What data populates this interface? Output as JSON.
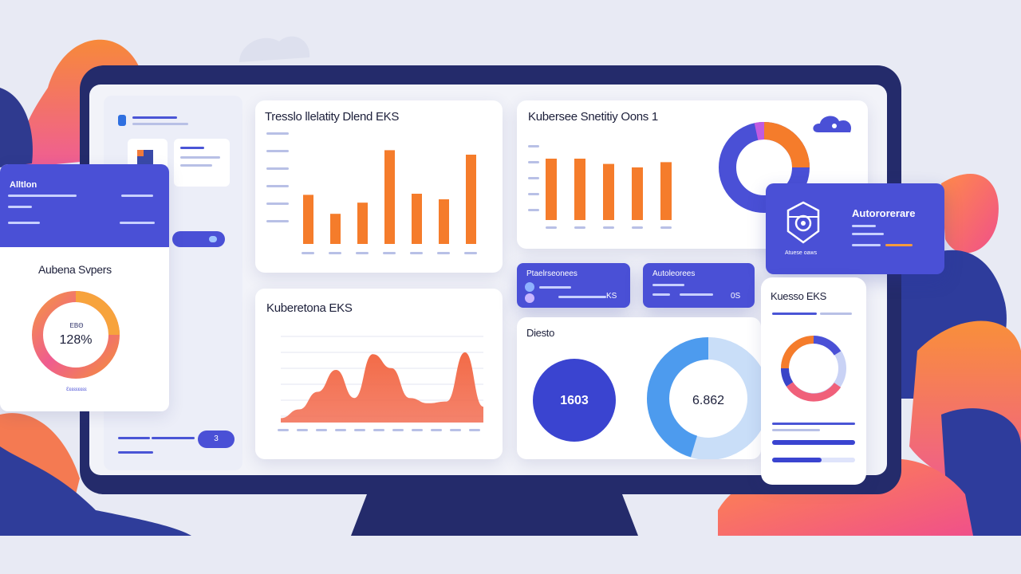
{
  "colors": {
    "navy": "#242b6b",
    "accent_blue": "#4a50d6",
    "orange": "#f57c2b",
    "pink": "#f05a8c",
    "light_blue": "#4d9bee",
    "background": "#e8eaf4"
  },
  "bar_panel_1": {
    "title": "Tresslo llelatity Dlend EKS",
    "chart_data": {
      "type": "bar",
      "values": [
        44,
        27,
        37,
        84,
        45,
        40,
        80
      ],
      "ylim": [
        0,
        100
      ]
    }
  },
  "bar_panel_2": {
    "title": "Kubersee Snetitiy Oons 1",
    "chart_data": {
      "type": "bar",
      "values": [
        70,
        70,
        64,
        60,
        66
      ],
      "ylim": [
        0,
        100
      ]
    }
  },
  "area_panel": {
    "title": "Kuberetona EKS",
    "chart_data": {
      "type": "area",
      "values": [
        5,
        15,
        35,
        60,
        28,
        78,
        62,
        28,
        22,
        24,
        80,
        18
      ],
      "ylim": [
        0,
        100
      ]
    }
  },
  "left_card": {
    "header_title": "Alltlon",
    "title": "Aubena Svpers",
    "donut_small_label": "ΕΒΘ",
    "donut_value": "128%",
    "donut_caption": "Ɛɛɛɛɛɛɛɛɛ"
  },
  "circles_panel": {
    "title": "Diesto",
    "circle_value": "1603",
    "donut_value": "6.862"
  },
  "autoreare_card": {
    "title": "Autororerare",
    "caption": "Atuese oaws"
  },
  "mobile_card": {
    "title": "Kuesso EKS"
  },
  "mini_card_1": {
    "title": "Ptaelrseonees",
    "value": "KS"
  },
  "mini_card_2": {
    "title": "Autoleorees",
    "value": "0S"
  },
  "sidebar": {
    "badge": "3"
  },
  "icons": [
    "cloud-icon",
    "robot-icon",
    "toggle-icon"
  ]
}
